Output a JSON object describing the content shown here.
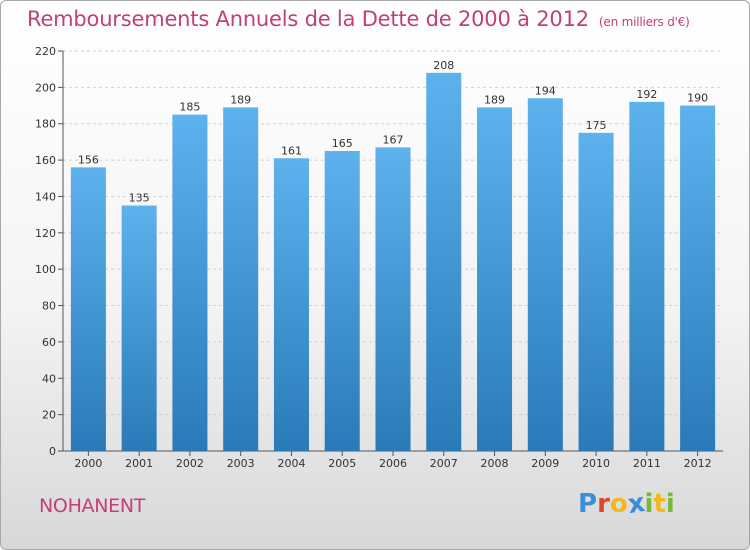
{
  "header": {
    "title": "Remboursements Annuels de la Dette de 2000 à 2012",
    "unit": "(en milliers d'€)"
  },
  "footer": {
    "place": "NOHANENT",
    "logo": {
      "letters": [
        "P",
        "r",
        "o",
        "x",
        "i",
        "t",
        "i"
      ],
      "colors": [
        "#3a8fd6",
        "#e0462b",
        "#f3b820",
        "#3a8fd6",
        "#7ab83a",
        "#f3b820",
        "#7ab83a"
      ]
    }
  },
  "colors": {
    "bar_top": "#5db2ee",
    "bar_bottom": "#2a7ab8",
    "title": "#c2407a"
  },
  "chart_data": {
    "type": "bar",
    "categories": [
      "2000",
      "2001",
      "2002",
      "2003",
      "2004",
      "2005",
      "2006",
      "2007",
      "2008",
      "2009",
      "2010",
      "2011",
      "2012"
    ],
    "values": [
      156,
      135,
      185,
      189,
      161,
      165,
      167,
      208,
      189,
      194,
      175,
      192,
      190
    ],
    "yticks": [
      0,
      20,
      40,
      60,
      80,
      100,
      120,
      140,
      160,
      180,
      200,
      220
    ],
    "ylim": [
      0,
      220
    ],
    "grid": true,
    "legend": "none"
  }
}
